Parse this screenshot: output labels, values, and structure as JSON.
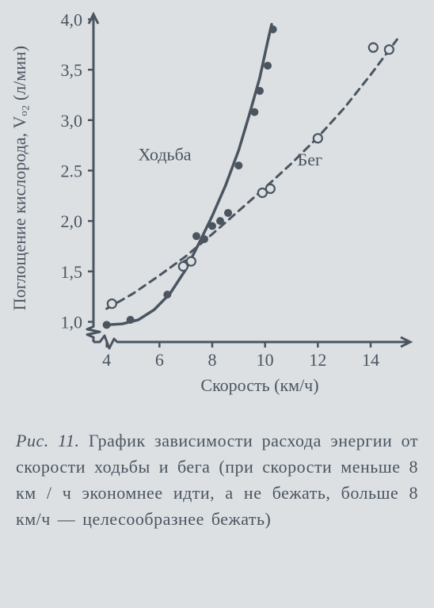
{
  "chart": {
    "type": "scatter-line",
    "background_color": "#dce0e3",
    "axis_color": "#4a5560",
    "axis_width": 3,
    "label_fontsize": 22,
    "tick_fontsize": 22,
    "x": {
      "label": "Скорость (км/ч)",
      "lim": [
        3.5,
        15.5
      ],
      "ticks": [
        4,
        6,
        8,
        10,
        12,
        14
      ],
      "tick_labels": [
        "4",
        "6",
        "8",
        "10",
        "12",
        "14"
      ]
    },
    "y": {
      "label": "Поглощение кислорода, Vₒ₂ (л/мин)",
      "lim": [
        0.8,
        4.05
      ],
      "ticks": [
        1.0,
        1.5,
        2.0,
        2.5,
        3.0,
        3.5,
        4.0
      ],
      "tick_labels": [
        "1,0",
        "1,5",
        "2,0",
        "2.5",
        "3,0",
        "3,5",
        "4,0"
      ]
    },
    "series": [
      {
        "name": "Ходьба",
        "label_pos": [
          6.2,
          2.6
        ],
        "curve_color": "#4a5560",
        "curve_width": 3.5,
        "curve_dash": "none",
        "marker": "filled-circle",
        "marker_radius": 5,
        "points": [
          [
            4.0,
            0.97
          ],
          [
            4.9,
            1.02
          ],
          [
            6.3,
            1.27
          ],
          [
            7.0,
            1.58
          ],
          [
            7.4,
            1.85
          ],
          [
            7.7,
            1.82
          ],
          [
            8.0,
            1.95
          ],
          [
            8.3,
            2.0
          ],
          [
            8.6,
            2.08
          ],
          [
            9.0,
            2.55
          ],
          [
            9.6,
            3.08
          ],
          [
            9.8,
            3.29
          ],
          [
            10.1,
            3.54
          ],
          [
            10.3,
            3.9
          ]
        ],
        "curve": [
          [
            4.0,
            0.97
          ],
          [
            4.6,
            0.98
          ],
          [
            5.2,
            1.02
          ],
          [
            5.8,
            1.12
          ],
          [
            6.4,
            1.28
          ],
          [
            7.0,
            1.52
          ],
          [
            7.5,
            1.78
          ],
          [
            8.0,
            2.05
          ],
          [
            8.5,
            2.35
          ],
          [
            9.0,
            2.7
          ],
          [
            9.4,
            3.05
          ],
          [
            9.8,
            3.42
          ],
          [
            10.1,
            3.78
          ],
          [
            10.25,
            3.95
          ]
        ]
      },
      {
        "name": "Бег",
        "label_pos": [
          11.7,
          2.55
        ],
        "curve_color": "#4a5560",
        "curve_width": 3,
        "curve_dash": "9 7",
        "marker": "open-circle",
        "marker_radius": 5.5,
        "points": [
          [
            4.2,
            1.18
          ],
          [
            6.9,
            1.55
          ],
          [
            7.2,
            1.6
          ],
          [
            9.9,
            2.28
          ],
          [
            10.2,
            2.32
          ],
          [
            12.0,
            2.82
          ],
          [
            14.1,
            3.72
          ],
          [
            14.7,
            3.7
          ]
        ],
        "curve": [
          [
            4.0,
            1.13
          ],
          [
            5.0,
            1.28
          ],
          [
            6.0,
            1.46
          ],
          [
            7.0,
            1.65
          ],
          [
            8.0,
            1.87
          ],
          [
            9.0,
            2.1
          ],
          [
            10.0,
            2.33
          ],
          [
            11.0,
            2.57
          ],
          [
            12.0,
            2.83
          ],
          [
            13.0,
            3.12
          ],
          [
            14.0,
            3.45
          ],
          [
            15.0,
            3.8
          ]
        ]
      }
    ]
  },
  "caption": {
    "fig_label": "Рис. 11.",
    "text": "График зависимости рас­хода энергии от скорости ходьбы и бега (при скорости меньше 8 км / ч экономнее идти, а не бежать, боль­ше 8 км/ч — целесообразнее бе­жать)"
  }
}
